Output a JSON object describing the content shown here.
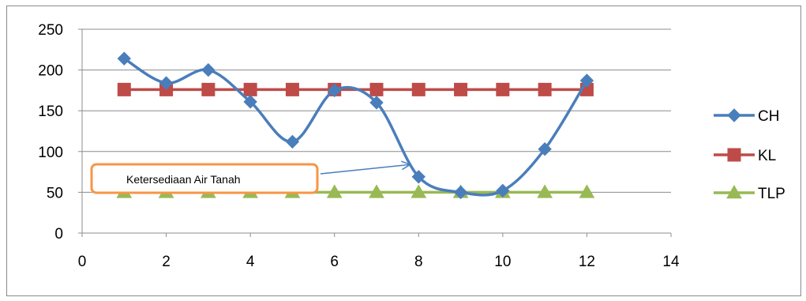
{
  "chart_data": {
    "type": "line",
    "xlim": [
      0,
      14
    ],
    "ylim": [
      0,
      250
    ],
    "xticks": [
      "0",
      "2",
      "4",
      "6",
      "8",
      "10",
      "12",
      "14"
    ],
    "yticks": [
      "0",
      "50",
      "100",
      "150",
      "200",
      "250"
    ],
    "grid": "horizontal",
    "legend_position": "right",
    "series": [
      {
        "name": "CH",
        "color": "#4a7ebb",
        "marker": "diamond",
        "smooth": true,
        "x": [
          1,
          2,
          3,
          4,
          5,
          6,
          7,
          8,
          9,
          10,
          11,
          12
        ],
        "y": [
          214,
          184,
          200,
          161,
          112,
          175,
          160,
          69,
          50,
          52,
          103,
          187
        ]
      },
      {
        "name": "KL",
        "color": "#be4b48",
        "marker": "square",
        "smooth": false,
        "x": [
          1,
          2,
          3,
          4,
          5,
          6,
          7,
          8,
          9,
          10,
          11,
          12
        ],
        "y": [
          176,
          176,
          176,
          176,
          176,
          176,
          176,
          176,
          176,
          176,
          176,
          176
        ]
      },
      {
        "name": "TLP",
        "color": "#98b954",
        "marker": "triangle",
        "smooth": false,
        "x": [
          1,
          2,
          3,
          4,
          5,
          6,
          7,
          8,
          9,
          10,
          11,
          12
        ],
        "y": [
          50,
          50,
          50,
          50,
          50,
          50,
          50,
          50,
          50,
          50,
          50,
          50
        ]
      }
    ],
    "annotation": {
      "text": "Ketersediaan Air Tanah",
      "border_color": "#f79646",
      "arrow_to": [
        7.8,
        84
      ]
    }
  }
}
